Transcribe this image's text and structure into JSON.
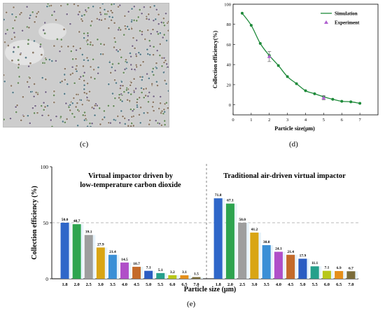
{
  "panel_labels": {
    "c": "(c)",
    "d": "(d)",
    "e": "(e)"
  },
  "colors": {
    "sim_line": "#1e8a3a",
    "sim_point": "#1e8a3a",
    "exp_point": "#b060d0",
    "bars": [
      "#2f67c9",
      "#2ea44f",
      "#9e9e9e",
      "#d9a514",
      "#3a8fd6",
      "#b04fc8",
      "#c46a2a",
      "#2a5cc2",
      "#26a08b",
      "#b8c71a",
      "#e58f1a",
      "#7a6c3a",
      "#5f86a6"
    ]
  },
  "chart_data": [
    {
      "type": "scatter",
      "xlabel": "Particle size(μm)",
      "ylabel": "Collection efficiency(%)",
      "xlim": [
        0,
        8
      ],
      "ylim": [
        -10,
        100
      ],
      "xticks": [
        "0",
        "1",
        "2",
        "3",
        "4",
        "5",
        "6",
        "7"
      ],
      "yticks": [
        "0",
        "20",
        "40",
        "60",
        "80",
        "100"
      ],
      "legend_position": "top-right",
      "series": [
        {
          "name": "Simulation",
          "type": "line",
          "x": [
            0.5,
            1.0,
            1.5,
            2.0,
            2.5,
            3.0,
            3.5,
            4.0,
            4.5,
            5.0,
            5.5,
            6.0,
            6.5,
            7.0
          ],
          "y": [
            91,
            79,
            61,
            49,
            39,
            28,
            21,
            14,
            11,
            8,
            5.5,
            3.5,
            3,
            1.5
          ]
        },
        {
          "name": "Experiment",
          "type": "scatter",
          "x": [
            2.0,
            5.0
          ],
          "y": [
            48,
            7
          ],
          "yerr": [
            5,
            2
          ]
        }
      ]
    },
    {
      "type": "bar",
      "ylabel": "Collection efficiency (%)",
      "xlabel": "Particle size (μm)",
      "ylim": [
        0,
        100
      ],
      "yticks": [
        "0",
        "50",
        "100"
      ],
      "reference_line": 50,
      "groups": [
        {
          "title_lines": [
            "Virtual impactor driven by",
            "low-temperature carbon dioxide"
          ],
          "categories": [
            "1.8",
            "2.0",
            "2.5",
            "3.0",
            "3.5",
            "4.0",
            "4.5",
            "5.0",
            "5.5",
            "6.0",
            "6.5",
            "7.0"
          ],
          "values": [
            50.0,
            48.7,
            39.1,
            27.9,
            21.4,
            14.5,
            10.7,
            7.1,
            5.1,
            3.2,
            3.1,
            1.5
          ],
          "labels": [
            "50.0",
            "48.7",
            "39.1",
            "27.9",
            "21.4",
            "14.5",
            "10.7",
            "7.1",
            "5.1",
            "3.2",
            "3.1",
            "1.5"
          ]
        },
        {
          "title_lines": [
            "Traditional air-driven virtual impactor"
          ],
          "categories": [
            "1.8",
            "2.0",
            "2.5",
            "3.0",
            "3.5",
            "4.0",
            "4.5",
            "5.0",
            "5.5",
            "6.0",
            "6.5",
            "7.0"
          ],
          "values": [
            71.8,
            67.1,
            50.0,
            41.2,
            30.0,
            24.1,
            21.4,
            17.9,
            11.1,
            7.1,
            6.9,
            6.7
          ],
          "labels": [
            "71.8",
            "67.1",
            "50.0",
            "41.2",
            "30.0",
            "24.1",
            "21.4",
            "17.9",
            "11.1",
            "7.1",
            "6.9",
            "6.7"
          ]
        }
      ]
    }
  ]
}
